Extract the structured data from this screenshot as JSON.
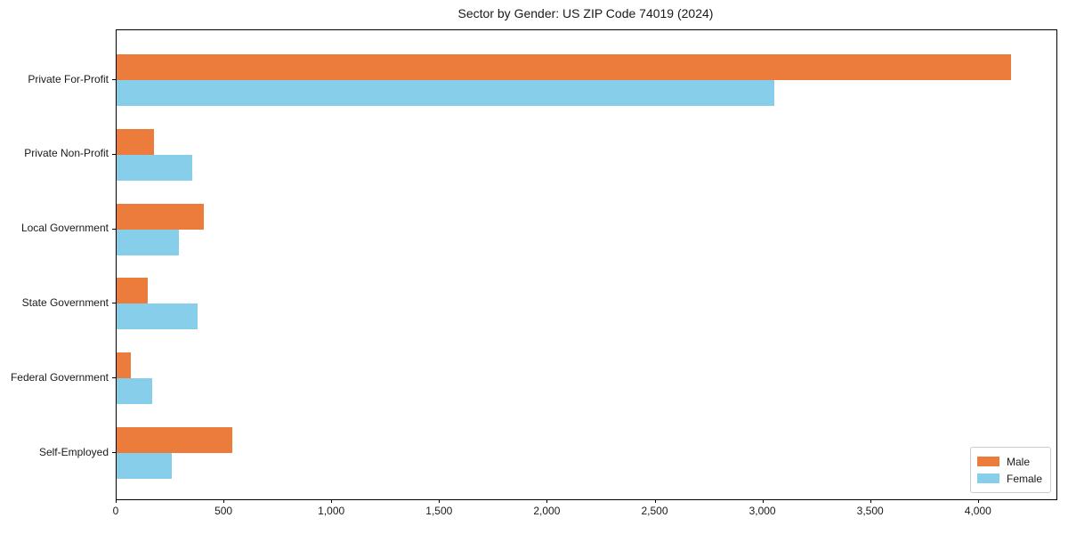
{
  "title": "Sector by Gender: US ZIP Code 74019 (2024)",
  "chart_data": {
    "type": "bar",
    "orientation": "horizontal",
    "title": "Sector by Gender: US ZIP Code 74019 (2024)",
    "xlabel": "",
    "ylabel": "",
    "categories": [
      "Private For-Profit",
      "Private Non-Profit",
      "Local Government",
      "State Government",
      "Federal Government",
      "Self-Employed"
    ],
    "series": [
      {
        "name": "Male",
        "color": "#EB7C3C",
        "values": [
          4150,
          175,
          405,
          145,
          65,
          535
        ]
      },
      {
        "name": "Female",
        "color": "#87CEEB",
        "values": [
          3050,
          350,
          290,
          375,
          165,
          255
        ]
      }
    ],
    "xlim": [
      0,
      4360
    ],
    "xticks": [
      0,
      500,
      1000,
      1500,
      2000,
      2500,
      3000,
      3500,
      4000
    ],
    "xtick_labels": [
      "0",
      "500",
      "1,000",
      "1,500",
      "2,000",
      "2,500",
      "3,000",
      "3,500",
      "4,000"
    ],
    "grid": false,
    "legend": {
      "position": "lower right",
      "labels": [
        "Male",
        "Female"
      ]
    }
  }
}
